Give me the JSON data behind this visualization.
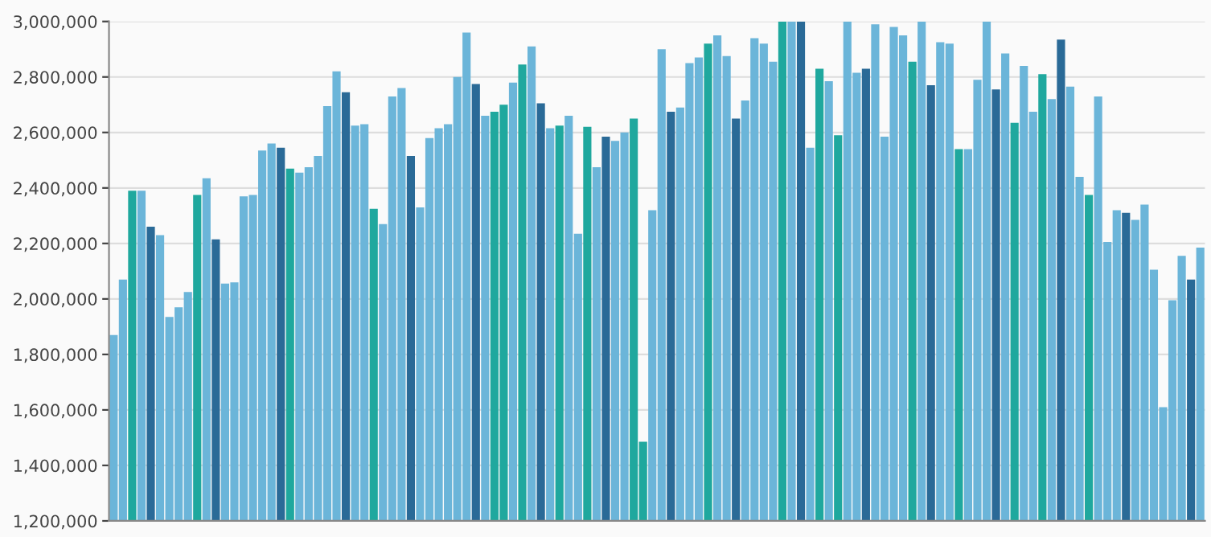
{
  "chart_data": {
    "type": "bar",
    "categories": [
      null,
      null,
      null,
      null,
      null,
      null,
      null,
      null,
      null,
      null,
      null,
      null,
      null,
      null,
      null,
      null,
      null,
      null,
      null,
      null,
      null,
      null,
      null,
      null,
      null,
      null,
      null,
      null,
      null,
      null,
      null,
      null,
      null,
      null,
      null,
      null,
      null,
      null,
      null,
      null,
      null,
      null,
      null,
      null,
      null,
      null,
      null,
      null,
      null,
      null,
      null,
      null,
      null,
      null,
      null,
      null,
      null,
      null,
      null,
      null,
      null,
      null,
      null,
      null,
      null,
      null,
      null,
      null,
      null,
      null,
      null,
      null,
      null,
      null,
      null,
      null,
      null,
      null,
      null,
      null,
      null,
      null,
      null,
      null,
      null,
      null,
      null,
      null,
      null,
      null,
      null,
      null,
      null,
      null,
      null,
      null,
      null,
      null,
      null,
      null,
      null,
      null,
      null,
      null,
      null,
      null,
      null,
      null,
      null,
      null,
      null,
      null,
      null,
      null,
      null,
      null,
      null,
      null
    ],
    "values": [
      1870000,
      2070000,
      2390000,
      2390000,
      2260000,
      2230000,
      1935000,
      1970000,
      2025000,
      2375000,
      2435000,
      2215000,
      2055000,
      2060000,
      2370000,
      2375000,
      2535000,
      2560000,
      2545000,
      2470000,
      2455000,
      2475000,
      2515000,
      2695000,
      2820000,
      2745000,
      2625000,
      2630000,
      2325000,
      2270000,
      2730000,
      2760000,
      2515000,
      2330000,
      2580000,
      2615000,
      2630000,
      2800000,
      2960000,
      2775000,
      2660000,
      2675000,
      2700000,
      2780000,
      2845000,
      2910000,
      2705000,
      2615000,
      2625000,
      2660000,
      2235000,
      2620000,
      2475000,
      2585000,
      2570000,
      2600000,
      2650000,
      1485000,
      2320000,
      2900000,
      2675000,
      2690000,
      2850000,
      2870000,
      2920000,
      2950000,
      2875000,
      2650000,
      2715000,
      2940000,
      2920000,
      2855000,
      3000000,
      3000000,
      3000000,
      2545000,
      2830000,
      2785000,
      2590000,
      3000000,
      2815000,
      2830000,
      2990000,
      2585000,
      2980000,
      2950000,
      2855000,
      3000000,
      2770000,
      2925000,
      2920000,
      2540000,
      2540000,
      2790000,
      3000000,
      2755000,
      2885000,
      2635000,
      2840000,
      2675000,
      2810000,
      2720000,
      2935000,
      2765000,
      2440000,
      2375000,
      2730000,
      2205000,
      2320000,
      2310000,
      2285000,
      2340000,
      2105000,
      1610000,
      1995000,
      2155000,
      2070000,
      2185000
    ],
    "colors": [
      "#6bb5d9",
      "#6bb5d9",
      "#1fa89e",
      "#6bb5d9",
      "#2a6a97",
      "#6bb5d9",
      "#6bb5d9",
      "#6bb5d9",
      "#6bb5d9",
      "#1fa89e",
      "#6bb5d9",
      "#2a6a97",
      "#6bb5d9",
      "#6bb5d9",
      "#6bb5d9",
      "#6bb5d9",
      "#6bb5d9",
      "#6bb5d9",
      "#2a6a97",
      "#1fa89e",
      "#6bb5d9",
      "#6bb5d9",
      "#6bb5d9",
      "#6bb5d9",
      "#6bb5d9",
      "#2a6a97",
      "#6bb5d9",
      "#6bb5d9",
      "#1fa89e",
      "#6bb5d9",
      "#6bb5d9",
      "#6bb5d9",
      "#2a6a97",
      "#6bb5d9",
      "#6bb5d9",
      "#6bb5d9",
      "#6bb5d9",
      "#6bb5d9",
      "#6bb5d9",
      "#2a6a97",
      "#6bb5d9",
      "#1fa89e",
      "#1fa89e",
      "#6bb5d9",
      "#1fa89e",
      "#6bb5d9",
      "#2a6a97",
      "#6bb5d9",
      "#1fa89e",
      "#6bb5d9",
      "#6bb5d9",
      "#1fa89e",
      "#6bb5d9",
      "#2a6a97",
      "#6bb5d9",
      "#6bb5d9",
      "#1fa89e",
      "#1fa89e",
      "#6bb5d9",
      "#6bb5d9",
      "#2a6a97",
      "#6bb5d9",
      "#6bb5d9",
      "#6bb5d9",
      "#1fa89e",
      "#6bb5d9",
      "#6bb5d9",
      "#2a6a97",
      "#6bb5d9",
      "#6bb5d9",
      "#6bb5d9",
      "#6bb5d9",
      "#1fa89e",
      "#6bb5d9",
      "#2a6a97",
      "#6bb5d9",
      "#1fa89e",
      "#6bb5d9",
      "#1fa89e",
      "#6bb5d9",
      "#6bb5d9",
      "#2a6a97",
      "#6bb5d9",
      "#6bb5d9",
      "#6bb5d9",
      "#6bb5d9",
      "#1fa89e",
      "#6bb5d9",
      "#2a6a97",
      "#6bb5d9",
      "#6bb5d9",
      "#1fa89e",
      "#6bb5d9",
      "#6bb5d9",
      "#6bb5d9",
      "#2a6a97",
      "#6bb5d9",
      "#1fa89e",
      "#6bb5d9",
      "#6bb5d9",
      "#1fa89e",
      "#6bb5d9",
      "#2a6a97",
      "#6bb5d9",
      "#6bb5d9",
      "#1fa89e",
      "#6bb5d9",
      "#6bb5d9",
      "#6bb5d9",
      "#2a6a97",
      "#6bb5d9",
      "#6bb5d9",
      "#6bb5d9",
      "#6bb5d9",
      "#6bb5d9",
      "#6bb5d9",
      "#2a6a97",
      "#6bb5d9"
    ],
    "ylim": [
      1200000,
      3000000
    ],
    "yticks": [
      {
        "value": 1200000,
        "label": "1,200,000"
      },
      {
        "value": 1400000,
        "label": "1,400,000"
      },
      {
        "value": 1600000,
        "label": "1,600,000"
      },
      {
        "value": 1800000,
        "label": "1,800,000"
      },
      {
        "value": 2000000,
        "label": "2,000,000"
      },
      {
        "value": 2200000,
        "label": "2,200,000"
      },
      {
        "value": 2400000,
        "label": "2,400,000"
      },
      {
        "value": 2600000,
        "label": "2,600,000"
      },
      {
        "value": 2800000,
        "label": "2,800,000"
      },
      {
        "value": 3000000,
        "label": "3,000,000"
      }
    ],
    "grid": "y"
  }
}
